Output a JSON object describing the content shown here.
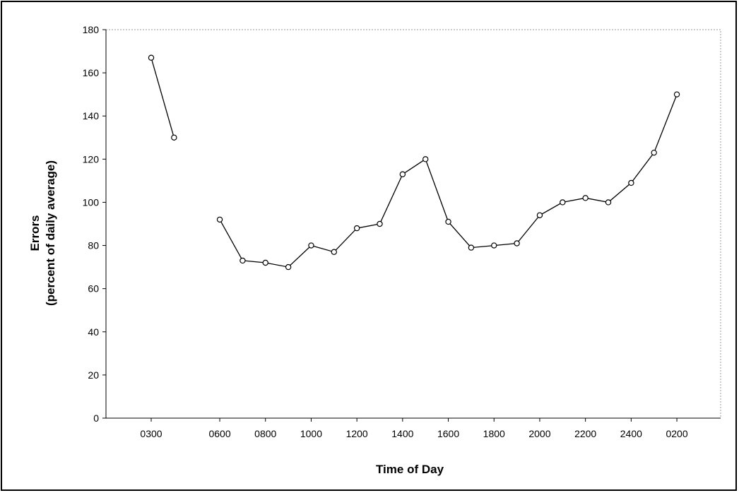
{
  "chart_data": {
    "type": "line",
    "title": "",
    "xlabel": "Time of Day",
    "ylabel_line1": "Errors",
    "ylabel_line2": "(percent of daily average)",
    "ylim": [
      0,
      180
    ],
    "yticks": [
      0,
      20,
      40,
      60,
      80,
      100,
      120,
      140,
      160,
      180
    ],
    "x_tick_labels": [
      {
        "label": "0300",
        "pos": 0
      },
      {
        "label": "0600",
        "pos": 3
      },
      {
        "label": "0800",
        "pos": 5
      },
      {
        "label": "1000",
        "pos": 7
      },
      {
        "label": "1200",
        "pos": 9
      },
      {
        "label": "1400",
        "pos": 11
      },
      {
        "label": "1600",
        "pos": 13
      },
      {
        "label": "1800",
        "pos": 15
      },
      {
        "label": "2000",
        "pos": 17
      },
      {
        "label": "2200",
        "pos": 19
      },
      {
        "label": "2400",
        "pos": 21
      },
      {
        "label": "0200",
        "pos": 23
      }
    ],
    "grid": false,
    "legend": "none",
    "series": [
      {
        "segments": [
          [
            {
              "x": 0,
              "y": 167
            },
            {
              "x": 1,
              "y": 130
            }
          ],
          [
            {
              "x": 3,
              "y": 92
            },
            {
              "x": 4,
              "y": 73
            },
            {
              "x": 5,
              "y": 72
            },
            {
              "x": 6,
              "y": 70
            },
            {
              "x": 7,
              "y": 80
            },
            {
              "x": 8,
              "y": 77
            },
            {
              "x": 9,
              "y": 88
            },
            {
              "x": 10,
              "y": 90
            },
            {
              "x": 11,
              "y": 113
            },
            {
              "x": 12,
              "y": 120
            },
            {
              "x": 13,
              "y": 91
            },
            {
              "x": 14,
              "y": 79
            },
            {
              "x": 15,
              "y": 80
            },
            {
              "x": 16,
              "y": 81
            },
            {
              "x": 17,
              "y": 94
            },
            {
              "x": 18,
              "y": 100
            },
            {
              "x": 19,
              "y": 102
            },
            {
              "x": 20,
              "y": 100
            },
            {
              "x": 21,
              "y": 109
            },
            {
              "x": 22,
              "y": 123
            },
            {
              "x": 23,
              "y": 150
            }
          ]
        ]
      }
    ],
    "colors": {
      "line": "#000000",
      "marker_fill": "#ffffff",
      "marker_stroke": "#000000"
    }
  }
}
